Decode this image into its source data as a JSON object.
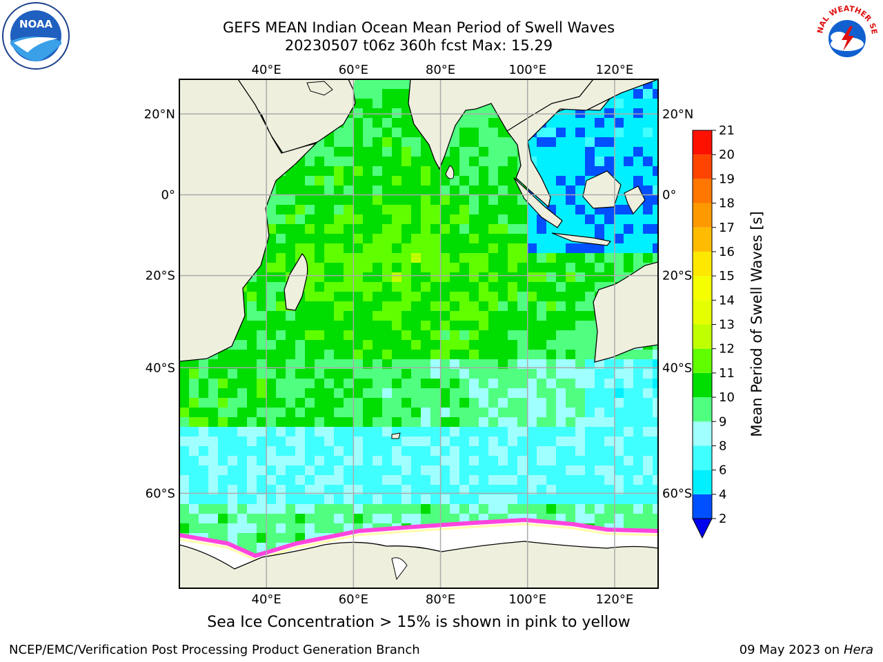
{
  "title": {
    "line1": "GEFS MEAN Indian Ocean Mean Period of Swell Waves",
    "line2": "20230507 t06z 360h fcst   Max: 15.29"
  },
  "map": {
    "lon_range": [
      20,
      130
    ],
    "lat_range": [
      -70,
      28
    ],
    "lon_ticks": [
      "40°E",
      "60°E",
      "80°E",
      "100°E",
      "120°E"
    ],
    "lat_ticks": [
      "20°N",
      "0°",
      "20°S",
      "40°S",
      "60°S"
    ],
    "land_color": "#efefde",
    "ice_colors": [
      "#ff44dd",
      "#ffffaa"
    ]
  },
  "colorbar": {
    "label": "Mean Period of Swell Waves [s]",
    "levels": [
      "2",
      "4",
      "6",
      "8",
      "9",
      "10",
      "11",
      "12",
      "13",
      "14",
      "15",
      "16",
      "17",
      "18",
      "19",
      "20",
      "21"
    ],
    "colors": [
      "#0050ff",
      "#00f0ff",
      "#40ffff",
      "#a0ffff",
      "#50ff80",
      "#00dd00",
      "#60ff00",
      "#c0ff00",
      "#e6ff00",
      "#f5ff00",
      "#ffe800",
      "#ffbb00",
      "#ff9900",
      "#ff7700",
      "#ff4400",
      "#ff1100"
    ],
    "under_color": "#0000ee"
  },
  "footer": {
    "ice_note": "Sea Ice Concentration > 15% is shown in pink to yellow",
    "credit": "NCEP/EMC/Verification Post Processing Product Generation Branch",
    "date": "09 May 2023",
    "on": "on",
    "host": "Hera"
  },
  "logos": {
    "noaa": "NOAA",
    "nws": "NATIONAL WEATHER SERVICE"
  }
}
